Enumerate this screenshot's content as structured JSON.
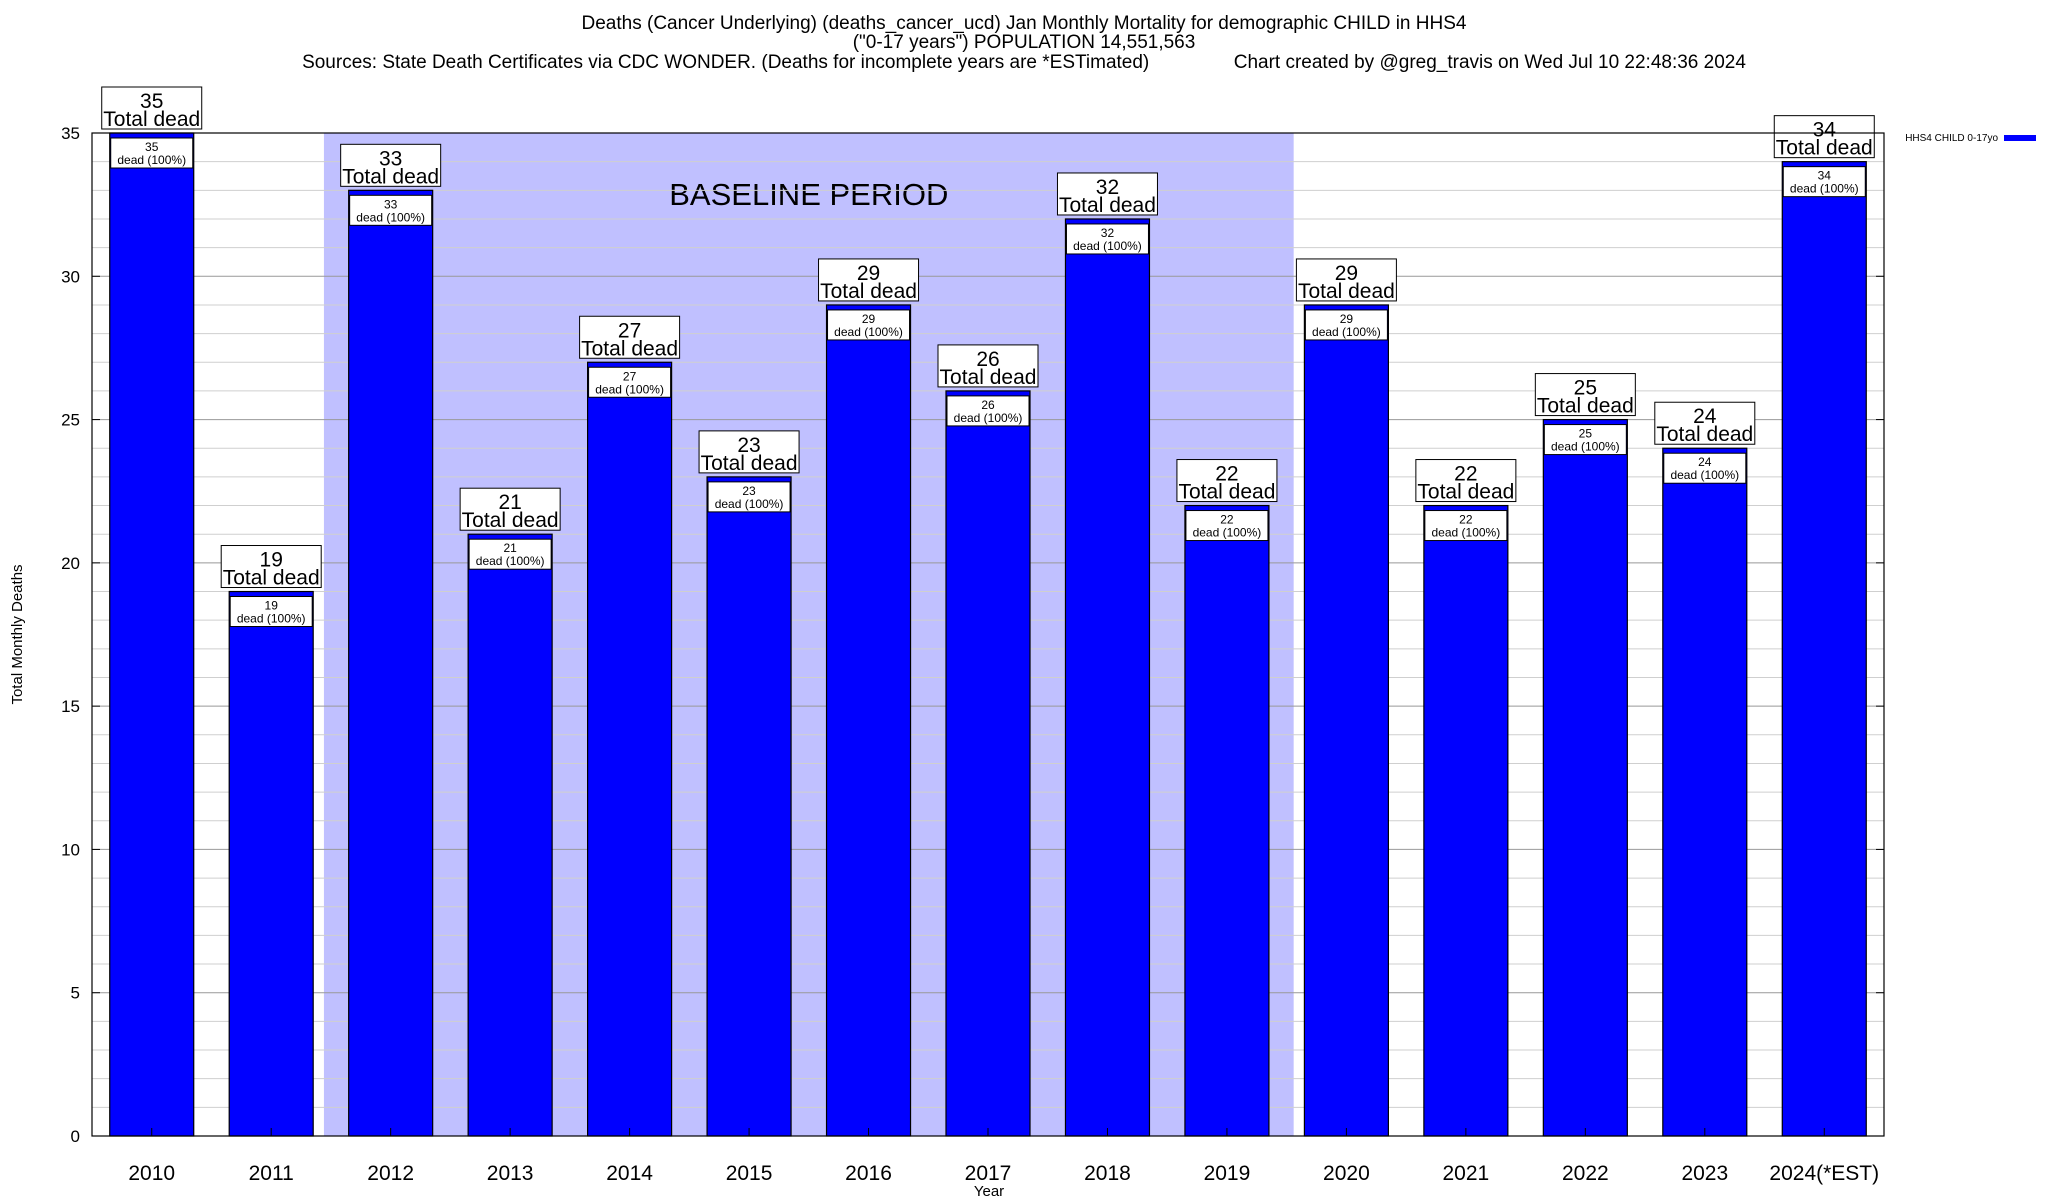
{
  "header": {
    "title_line1": "Deaths (Cancer Underlying) (deaths_cancer_ucd) Jan Monthly Mortality for demographic CHILD in HHS4",
    "title_line2": "(\"0-17 years\") POPULATION 14,551,563",
    "title_line3": "Sources: State Death Certificates via CDC WONDER. (Deaths for incomplete years are *ESTimated)                Chart created by @greg_travis on Wed Jul 10 22:48:36 2024"
  },
  "chart_data": {
    "type": "bar",
    "categories": [
      "2010",
      "2011",
      "2012",
      "2013",
      "2014",
      "2015",
      "2016",
      "2017",
      "2018",
      "2019",
      "2020",
      "2021",
      "2022",
      "2023",
      "2024(*EST)"
    ],
    "series": [
      {
        "name": "HHS4 CHILD 0-17yo",
        "color": "#0000ff",
        "values": [
          35,
          19,
          33,
          21,
          27,
          23,
          29,
          26,
          32,
          22,
          29,
          22,
          25,
          24,
          34
        ]
      }
    ],
    "total_label_suffix": "Total dead",
    "inner_label_suffix": "dead (100%)",
    "baseline": {
      "label": "BASELINE PERIOD",
      "from": "2012",
      "to": "2019",
      "color": "#c0c0ff"
    },
    "xlabel": "Year",
    "ylabel": "Total Monthly Deaths",
    "ylim": [
      0,
      35
    ],
    "yticks": [
      0,
      5,
      10,
      15,
      20,
      25,
      30,
      35
    ],
    "grid": true,
    "legend_position": "top-right"
  }
}
